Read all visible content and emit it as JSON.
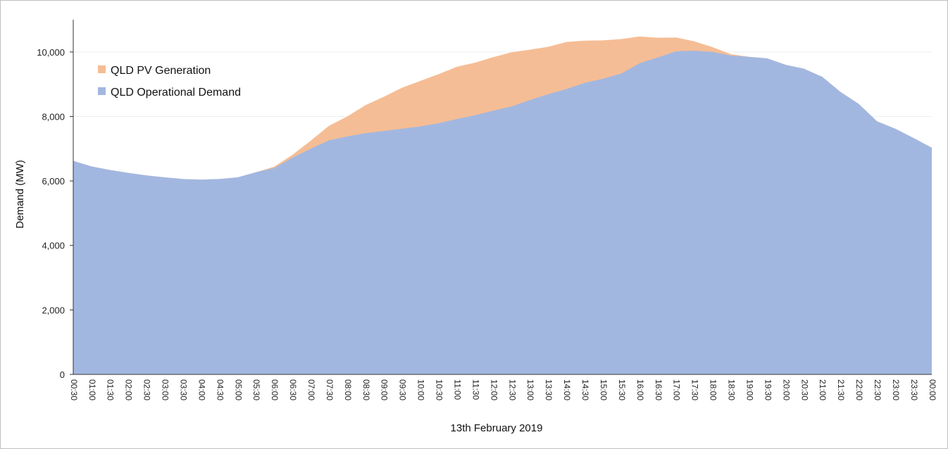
{
  "chart_data": {
    "type": "area",
    "stacked": true,
    "xlabel": "13th February 2019",
    "ylabel": "Demand (MW)",
    "ylim": [
      0,
      11000
    ],
    "y_ticks": [
      0,
      2000,
      4000,
      6000,
      8000,
      10000
    ],
    "y_tick_labels": [
      "0",
      "2,000",
      "4,000",
      "6,000",
      "8,000",
      "10,000"
    ],
    "grid": "horizontal",
    "legend_position": "top-left",
    "x": [
      "00:30",
      "01:00",
      "01:30",
      "02:00",
      "02:30",
      "03:00",
      "03:30",
      "04:00",
      "04:30",
      "05:00",
      "05:30",
      "06:00",
      "06:30",
      "07:00",
      "07:30",
      "08:00",
      "08:30",
      "09:00",
      "09:30",
      "10:00",
      "10:30",
      "11:00",
      "11:30",
      "12:00",
      "12:30",
      "13:00",
      "13:30",
      "14:00",
      "14:30",
      "15:00",
      "15:30",
      "16:00",
      "16:30",
      "17:00",
      "17:30",
      "18:00",
      "18:30",
      "19:00",
      "19:30",
      "20:00",
      "20:30",
      "21:00",
      "21:30",
      "22:00",
      "22:30",
      "23:00",
      "23:30",
      "00:00"
    ],
    "series": [
      {
        "name": "QLD Operational Demand",
        "color": "#a2b7e0",
        "values": [
          6620,
          6450,
          6340,
          6250,
          6170,
          6110,
          6060,
          6040,
          6060,
          6110,
          6270,
          6400,
          6720,
          7000,
          7260,
          7380,
          7480,
          7550,
          7620,
          7690,
          7790,
          7920,
          8040,
          8180,
          8310,
          8510,
          8690,
          8850,
          9040,
          9170,
          9330,
          9650,
          9830,
          10020,
          10040,
          10000,
          9890,
          9850,
          9800,
          9600,
          9480,
          9230,
          8760,
          8390,
          7850,
          7620,
          7330,
          7030
        ]
      },
      {
        "name": "QLD PV Generation",
        "color": "#f5bd95",
        "values": [
          0,
          0,
          0,
          0,
          0,
          0,
          0,
          0,
          0,
          0,
          0,
          40,
          90,
          250,
          450,
          620,
          870,
          1060,
          1270,
          1410,
          1520,
          1620,
          1630,
          1660,
          1680,
          1560,
          1470,
          1460,
          1310,
          1190,
          1070,
          830,
          610,
          430,
          290,
          150,
          40,
          0,
          0,
          0,
          0,
          0,
          0,
          0,
          0,
          0,
          0,
          0
        ]
      }
    ]
  }
}
